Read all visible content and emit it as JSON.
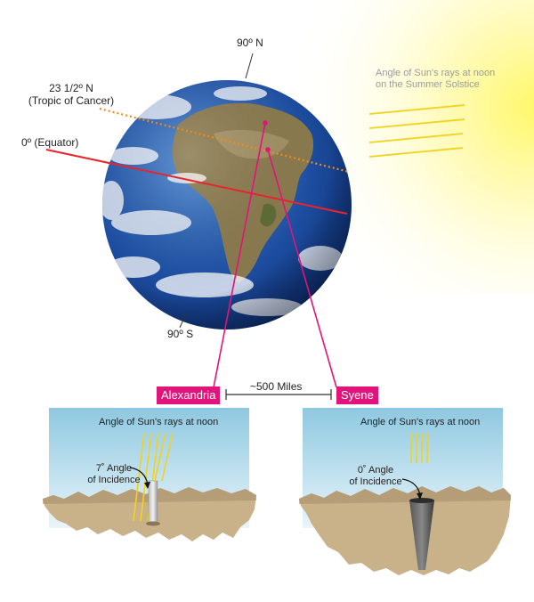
{
  "globe": {
    "north_pole": "90º N",
    "south_pole": "90º S",
    "tropic_line1": "23 1/2º N",
    "tropic_line2": "(Tropic of Cancer)",
    "equator": "0º (Equator)"
  },
  "sun": {
    "caption_line1": "Angle of Sun's rays at noon",
    "caption_line2": "on the Summer Solstice"
  },
  "cities": {
    "left": "Alexandria",
    "right": "Syene",
    "distance": "~500 Miles"
  },
  "panels": {
    "left": {
      "title": "Angle of Sun's rays at noon",
      "angle_line1": "7˚ Angle",
      "angle_line2": "of Incidence"
    },
    "right": {
      "title": "Angle of Sun's rays at noon",
      "angle_line1": "0˚ Angle",
      "angle_line2": "of Incidence"
    }
  },
  "colors": {
    "accent_magenta": "#e2137a",
    "equator_red": "#e8242c",
    "tropic_orange": "#f08a1c",
    "sun_ray_yellow": "#f3d21b",
    "sky_blue": "#8ec8e0",
    "ground_tan": "#c9b28a"
  }
}
